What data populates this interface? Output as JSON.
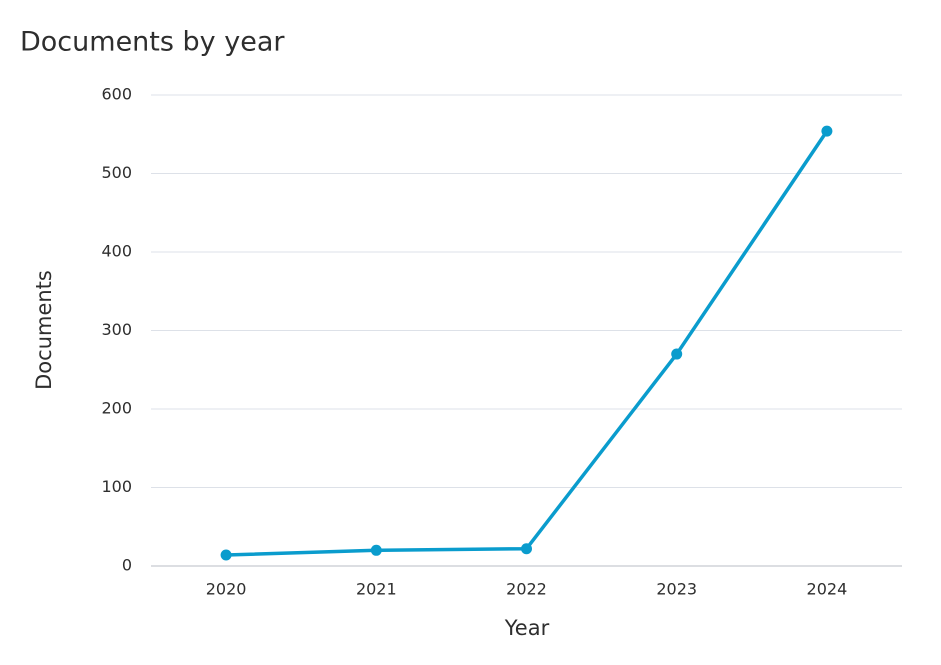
{
  "chart_data": {
    "type": "line",
    "title": "Documents by year",
    "x_label": "Year",
    "y_label": "Documents",
    "categories": [
      "2020",
      "2021",
      "2022",
      "2023",
      "2024"
    ],
    "series": [
      {
        "name": "Documents",
        "color": "#0a9ccd",
        "values": [
          14,
          20,
          22,
          270,
          554
        ]
      }
    ],
    "ylim": [
      0,
      600
    ],
    "yticks": [
      0,
      100,
      200,
      300,
      400,
      500,
      600
    ],
    "grid": true
  }
}
